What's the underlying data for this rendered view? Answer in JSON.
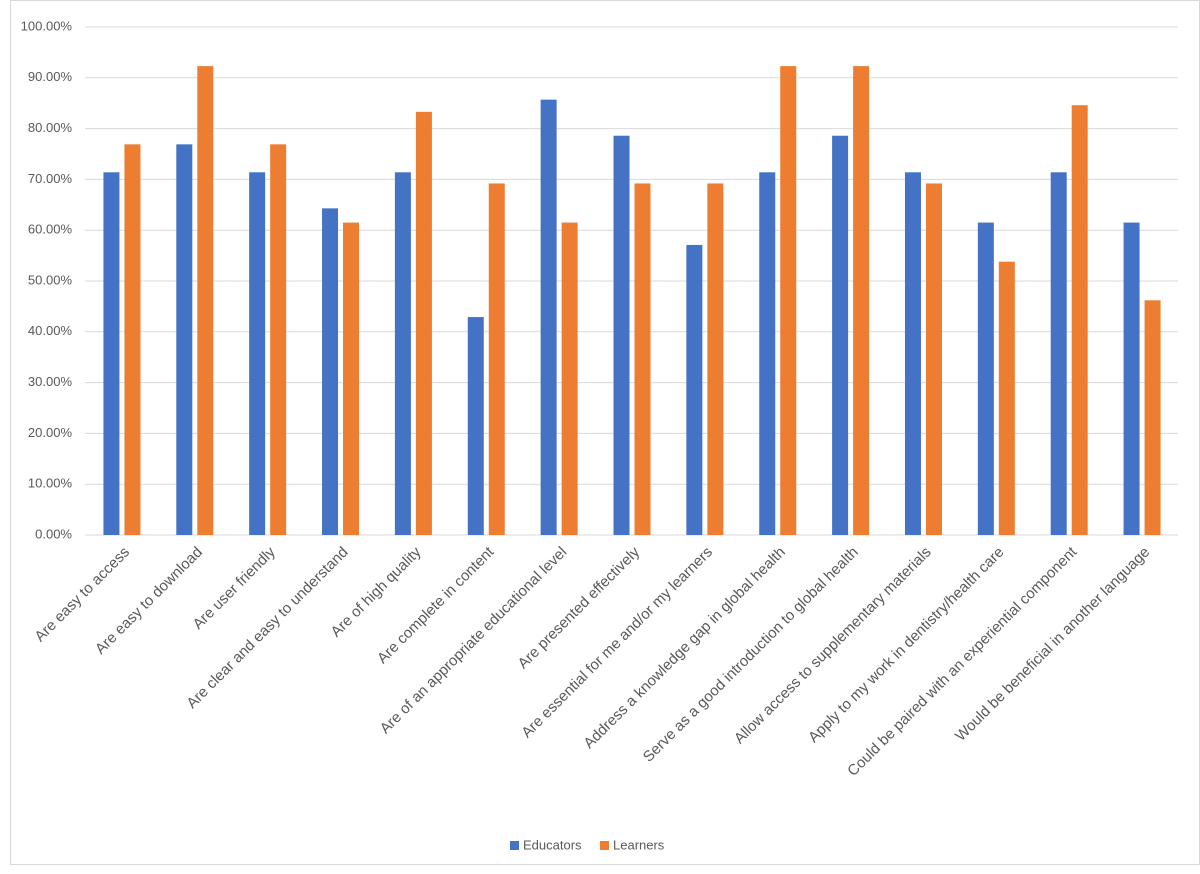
{
  "chart_data": {
    "type": "bar",
    "categories": [
      "Are easy to access",
      "Are easy to download",
      "Are user friendly",
      "Are clear and easy to understand",
      "Are of high quality",
      "Are complete in content",
      "Are of an appropriate educational level",
      "Are presented effectively",
      "Are essential for me and/or my learners",
      "Address a knowledge gap in global health",
      "Serve as a good introduction to global health",
      "Allow access to supplementary materials",
      "Apply to my work in dentistry/health care",
      "Could be paired with an experiential component",
      "Would be beneficial in another language"
    ],
    "series": [
      {
        "name": "Educators",
        "color": "#4472c4",
        "values": [
          71.4,
          76.9,
          71.4,
          64.3,
          71.4,
          42.9,
          85.7,
          78.6,
          57.1,
          71.4,
          78.6,
          71.4,
          61.5,
          71.4,
          61.5
        ]
      },
      {
        "name": "Learners",
        "color": "#ed7d31",
        "values": [
          76.9,
          92.3,
          76.9,
          61.5,
          83.3,
          69.2,
          61.5,
          69.2,
          69.2,
          92.3,
          92.3,
          69.2,
          53.8,
          84.6,
          46.2
        ]
      }
    ],
    "ylim": [
      0,
      100
    ],
    "yticks": [
      {
        "value": 0,
        "label": "0.00%"
      },
      {
        "value": 10,
        "label": "10.00%"
      },
      {
        "value": 20,
        "label": "20.00%"
      },
      {
        "value": 30,
        "label": "30.00%"
      },
      {
        "value": 40,
        "label": "40.00%"
      },
      {
        "value": 50,
        "label": "50.00%"
      },
      {
        "value": 60,
        "label": "60.00%"
      },
      {
        "value": 70,
        "label": "70.00%"
      },
      {
        "value": 80,
        "label": "80.00%"
      },
      {
        "value": 90,
        "label": "90.00%"
      },
      {
        "value": 100,
        "label": "100.00%"
      }
    ],
    "grid": true,
    "legend": "bottom"
  }
}
